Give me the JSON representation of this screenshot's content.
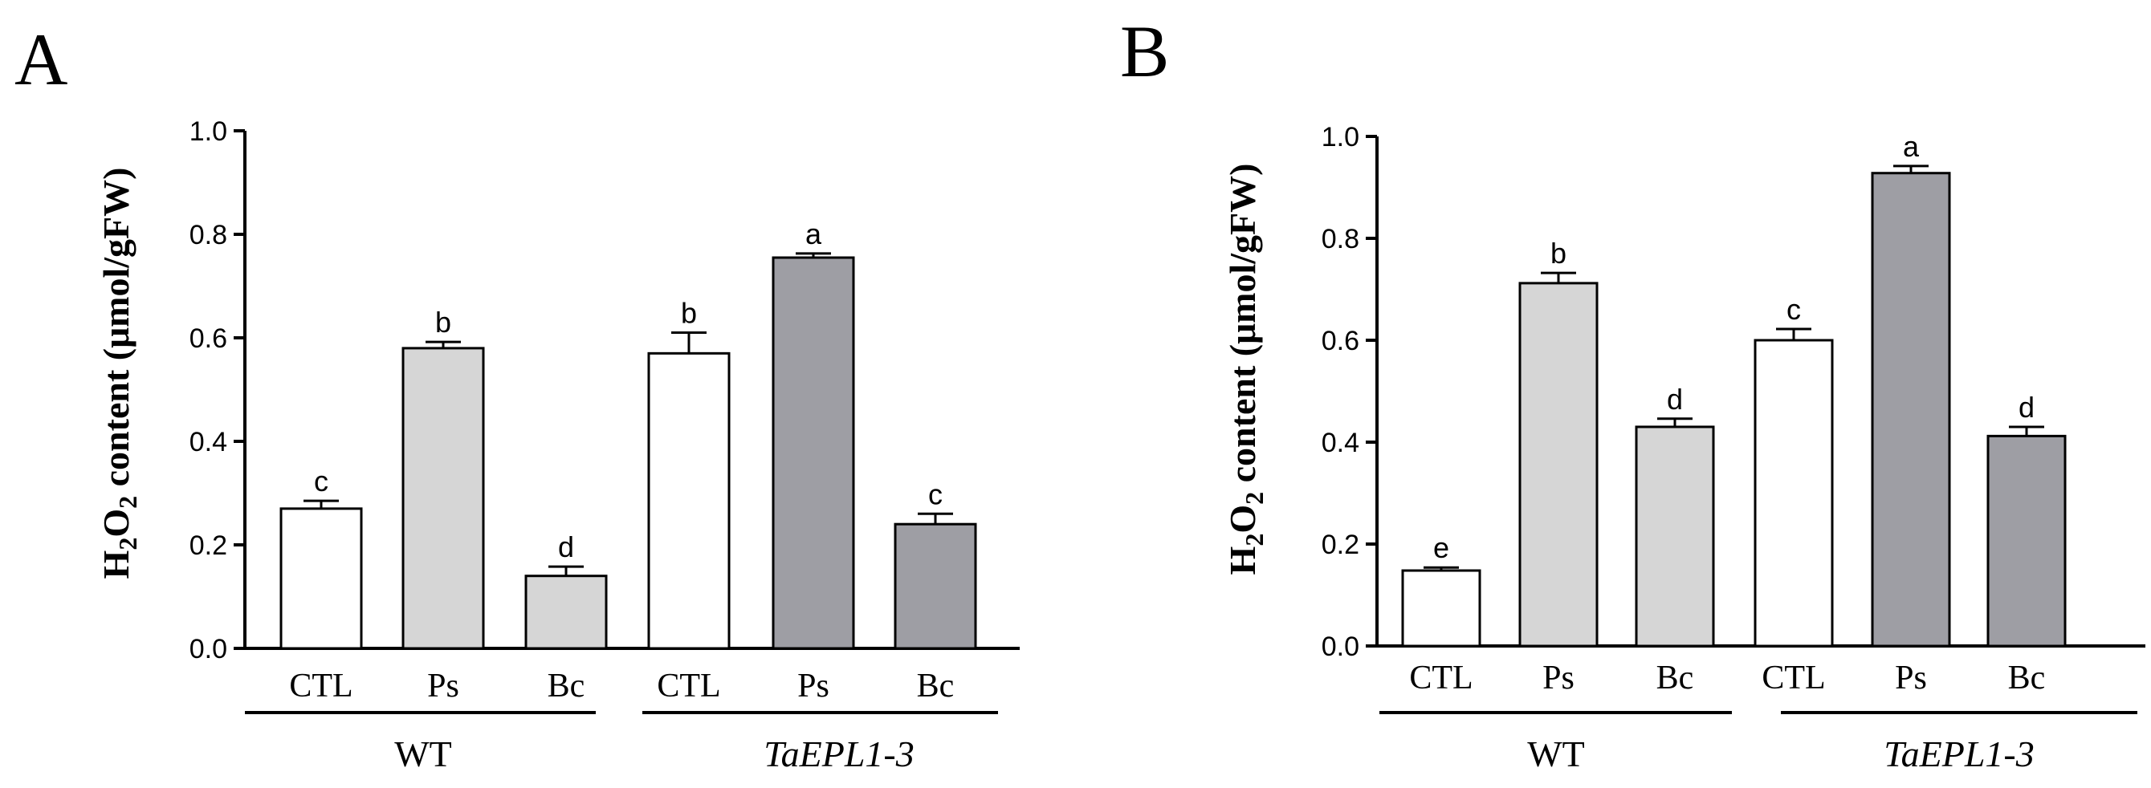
{
  "chart_data": [
    {
      "type": "bar",
      "panel": "A",
      "ylabel": {
        "main_1": "H",
        "sub_1": "2",
        "main_2": "O",
        "sub_2": "2",
        "rest": " content (μmol/gFW)"
      },
      "ylim": [
        0,
        1.0
      ],
      "yticks": [
        "0.0",
        "0.2",
        "0.4",
        "0.6",
        "0.8",
        "1.0"
      ],
      "categories": [
        "CTL",
        "Ps",
        "Bc",
        "CTL",
        "Ps",
        "Bc"
      ],
      "values": [
        0.27,
        0.58,
        0.14,
        0.57,
        0.755,
        0.24
      ],
      "errors": [
        0.015,
        0.012,
        0.018,
        0.04,
        0.008,
        0.02
      ],
      "significance": [
        "c",
        "b",
        "d",
        "b",
        "a",
        "c"
      ],
      "fills": [
        "#ffffff",
        "#d6d6d6",
        "#d6d6d6",
        "#ffffff",
        "#9e9ea4",
        "#9e9ea4"
      ],
      "groups": [
        {
          "label": "WT",
          "italic": false
        },
        {
          "label": "TaEPL1-3",
          "italic": true
        }
      ]
    },
    {
      "type": "bar",
      "panel": "B",
      "ylabel": {
        "main_1": "H",
        "sub_1": "2",
        "main_2": "O",
        "sub_2": "2",
        "rest": " content (μmol/gFW)"
      },
      "ylim": [
        0,
        1.0
      ],
      "yticks": [
        "0.0",
        "0.2",
        "0.4",
        "0.6",
        "0.8",
        "1.0"
      ],
      "categories": [
        "CTL",
        "Ps",
        "Bc",
        "CTL",
        "Ps",
        "Bc"
      ],
      "values": [
        0.148,
        0.712,
        0.43,
        0.6,
        0.928,
        0.412
      ],
      "errors": [
        0.006,
        0.02,
        0.016,
        0.022,
        0.014,
        0.018
      ],
      "significance": [
        "e",
        "b",
        "d",
        "c",
        "a",
        "d"
      ],
      "fills": [
        "#ffffff",
        "#d6d6d6",
        "#d6d6d6",
        "#ffffff",
        "#9e9ea4",
        "#9e9ea4"
      ],
      "groups": [
        {
          "label": "WT",
          "italic": false
        },
        {
          "label": "TaEPL1-3",
          "italic": true
        }
      ]
    }
  ]
}
